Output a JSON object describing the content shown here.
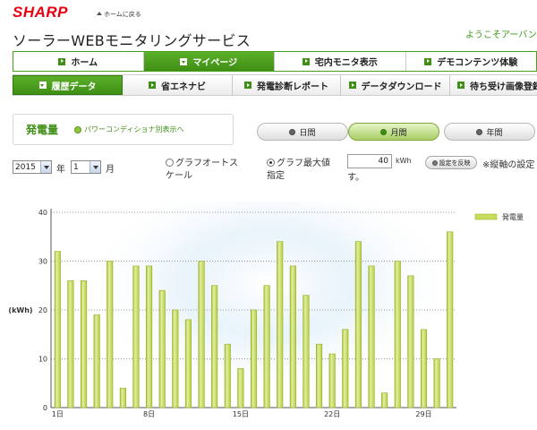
{
  "header": {
    "logo": "SHARP",
    "home_link": "ホームに戻る",
    "title": "ソーラーWEBモニタリングサービス",
    "welcome": "ようこそアーバン"
  },
  "nav_main": [
    {
      "label": "ホーム",
      "active": false
    },
    {
      "label": "マイページ",
      "active": true
    },
    {
      "label": "宅内モニタ表示",
      "active": false
    },
    {
      "label": "デモコンテンツ体験",
      "active": false
    }
  ],
  "nav_sub": [
    {
      "label": "履歴データ",
      "active": true
    },
    {
      "label": "省エネナビ",
      "active": false
    },
    {
      "label": "発電診断レポート",
      "active": false
    },
    {
      "label": "データダウンロード",
      "active": false
    },
    {
      "label": "待ち受け画像登録",
      "active": false
    }
  ],
  "panel": {
    "title": "発電量",
    "link": "パワーコンディショナ別表示へ"
  },
  "periods": [
    {
      "label": "日間",
      "active": false
    },
    {
      "label": "月間",
      "active": true
    },
    {
      "label": "年間",
      "active": false
    }
  ],
  "controls": {
    "year_value": "2015",
    "year_unit": "年",
    "month_value": "1",
    "month_unit": "月",
    "auto_scale_line1": "グラフオートス",
    "auto_scale_line2": "ケール",
    "max_line1": "グラフ最大値",
    "max_line2": "指定",
    "max_value": "40",
    "max_unit": "kWh",
    "max_suffix": "す。",
    "apply_button": "設定を反映",
    "note": "※縦軸の設定"
  },
  "colors": {
    "brand_red": "#e60012",
    "accent_green": "#3f8e15",
    "bar_fill": "#c8dd5e",
    "bar_edge": "#93ad1f"
  },
  "chart_data": {
    "type": "bar",
    "ylabel": "(kWh)",
    "ylim": [
      0,
      40
    ],
    "yticks": [
      0,
      10,
      20,
      30,
      40
    ],
    "x": [
      1,
      2,
      3,
      4,
      5,
      6,
      7,
      8,
      9,
      10,
      11,
      12,
      13,
      14,
      15,
      16,
      17,
      18,
      19,
      20,
      21,
      22,
      23,
      24,
      25,
      26,
      27,
      28,
      29,
      30,
      31
    ],
    "x_tick_labels": [
      {
        "day": 1,
        "label": "1日"
      },
      {
        "day": 8,
        "label": "8日"
      },
      {
        "day": 15,
        "label": "15日"
      },
      {
        "day": 22,
        "label": "22日"
      },
      {
        "day": 29,
        "label": "29日"
      }
    ],
    "series": [
      {
        "name": "発電量",
        "values": [
          32,
          26,
          26,
          19,
          30,
          4,
          29,
          29,
          24,
          20,
          18,
          30,
          25,
          13,
          8,
          20,
          25,
          34,
          29,
          23,
          13,
          11,
          16,
          34,
          29,
          3,
          30,
          27,
          16,
          10,
          36
        ]
      }
    ],
    "grid": true,
    "legend": "top-right"
  }
}
